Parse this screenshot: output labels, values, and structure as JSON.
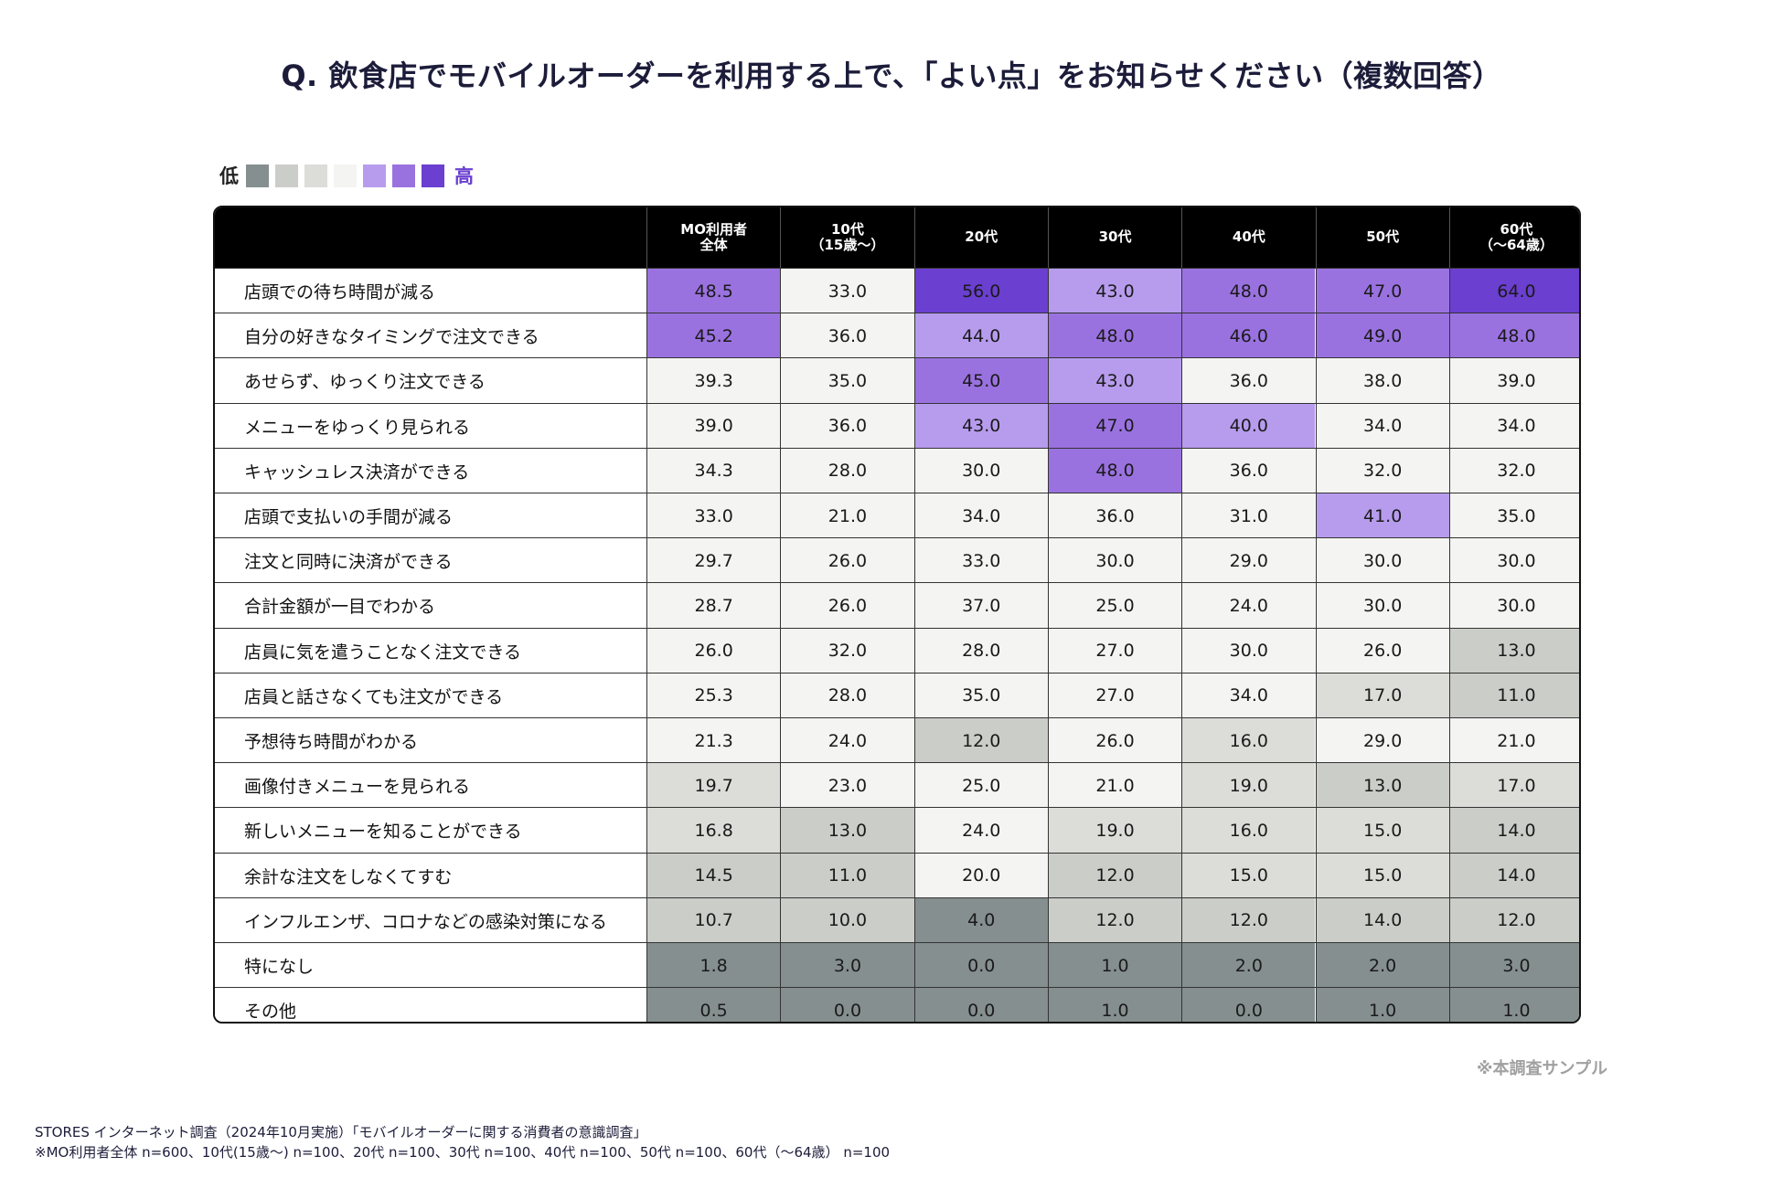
{
  "title": "Q. 飲食店でモバイルオーダーを利用する上で､「よい点」をお知らせください（複数回答）",
  "legend": {
    "low_label": "低",
    "high_label": "高",
    "swatches": [
      "#858f8f",
      "#cbcdc9",
      "#dcddd9",
      "#f4f4f2",
      "#b79cee",
      "#9a72e0",
      "#6b3fd0"
    ]
  },
  "colors": {
    "header_bg": "#000000",
    "header_text": "#ffffff",
    "level_1": "#858f8f",
    "level_2": "#cbcdc9",
    "level_3": "#dcddd9",
    "level_4": "#f4f4f2",
    "level_5": "#b79cee",
    "level_6": "#9a72e0",
    "level_7": "#6b3fd0"
  },
  "chart_data": {
    "type": "table",
    "title": "Q. 飲食店でモバイルオーダーを利用する上で､「よい点」をお知らせください（複数回答）",
    "columns": [
      {
        "line1": "MO利用者",
        "line2": "全体"
      },
      {
        "line1": "10代",
        "line2": "（15歳～）"
      },
      {
        "line1": "20代",
        "line2": ""
      },
      {
        "line1": "30代",
        "line2": ""
      },
      {
        "line1": "40代",
        "line2": ""
      },
      {
        "line1": "50代",
        "line2": ""
      },
      {
        "line1": "60代",
        "line2": "（～64歳）"
      }
    ],
    "rows": [
      {
        "label": "店頭での待ち時間が減る",
        "values": [
          "48.5",
          "33.0",
          "56.0",
          "43.0",
          "48.0",
          "47.0",
          "64.0"
        ],
        "levels": [
          6,
          4,
          7,
          5,
          6,
          6,
          7
        ]
      },
      {
        "label": "自分の好きなタイミングで注文できる",
        "values": [
          "45.2",
          "36.0",
          "44.0",
          "48.0",
          "46.0",
          "49.0",
          "48.0"
        ],
        "levels": [
          6,
          4,
          5,
          6,
          6,
          6,
          6
        ]
      },
      {
        "label": "あせらず、ゆっくり注文できる",
        "values": [
          "39.3",
          "35.0",
          "45.0",
          "43.0",
          "36.0",
          "38.0",
          "39.0"
        ],
        "levels": [
          4,
          4,
          6,
          5,
          4,
          4,
          4
        ]
      },
      {
        "label": "メニューをゆっくり見られる",
        "values": [
          "39.0",
          "36.0",
          "43.0",
          "47.0",
          "40.0",
          "34.0",
          "34.0"
        ],
        "levels": [
          4,
          4,
          5,
          6,
          5,
          4,
          4
        ]
      },
      {
        "label": "キャッシュレス決済ができる",
        "values": [
          "34.3",
          "28.0",
          "30.0",
          "48.0",
          "36.0",
          "32.0",
          "32.0"
        ],
        "levels": [
          4,
          4,
          4,
          6,
          4,
          4,
          4
        ]
      },
      {
        "label": "店頭で支払いの手間が減る",
        "values": [
          "33.0",
          "21.0",
          "34.0",
          "36.0",
          "31.0",
          "41.0",
          "35.0"
        ],
        "levels": [
          4,
          4,
          4,
          4,
          4,
          5,
          4
        ]
      },
      {
        "label": "注文と同時に決済ができる",
        "values": [
          "29.7",
          "26.0",
          "33.0",
          "30.0",
          "29.0",
          "30.0",
          "30.0"
        ],
        "levels": [
          4,
          4,
          4,
          4,
          4,
          4,
          4
        ]
      },
      {
        "label": "合計金額が一目でわかる",
        "values": [
          "28.7",
          "26.0",
          "37.0",
          "25.0",
          "24.0",
          "30.0",
          "30.0"
        ],
        "levels": [
          4,
          4,
          4,
          4,
          4,
          4,
          4
        ]
      },
      {
        "label": "店員に気を遣うことなく注文できる",
        "values": [
          "26.0",
          "32.0",
          "28.0",
          "27.0",
          "30.0",
          "26.0",
          "13.0"
        ],
        "levels": [
          4,
          4,
          4,
          4,
          4,
          4,
          2
        ]
      },
      {
        "label": "店員と話さなくても注文ができる",
        "values": [
          "25.3",
          "28.0",
          "35.0",
          "27.0",
          "34.0",
          "17.0",
          "11.0"
        ],
        "levels": [
          4,
          4,
          4,
          4,
          4,
          3,
          2
        ]
      },
      {
        "label": "予想待ち時間がわかる",
        "values": [
          "21.3",
          "24.0",
          "12.0",
          "26.0",
          "16.0",
          "29.0",
          "21.0"
        ],
        "levels": [
          4,
          4,
          2,
          4,
          3,
          4,
          4
        ]
      },
      {
        "label": "画像付きメニューを見られる",
        "values": [
          "19.7",
          "23.0",
          "25.0",
          "21.0",
          "19.0",
          "13.0",
          "17.0"
        ],
        "levels": [
          3,
          4,
          4,
          4,
          3,
          2,
          3
        ]
      },
      {
        "label": "新しいメニューを知ることができる",
        "values": [
          "16.8",
          "13.0",
          "24.0",
          "19.0",
          "16.0",
          "15.0",
          "14.0"
        ],
        "levels": [
          3,
          2,
          4,
          3,
          3,
          3,
          2
        ]
      },
      {
        "label": "余計な注文をしなくてすむ",
        "values": [
          "14.5",
          "11.0",
          "20.0",
          "12.0",
          "15.0",
          "15.0",
          "14.0"
        ],
        "levels": [
          2,
          2,
          4,
          2,
          3,
          3,
          2
        ]
      },
      {
        "label": "インフルエンザ、コロナなどの感染対策になる",
        "values": [
          "10.7",
          "10.0",
          "4.0",
          "12.0",
          "12.0",
          "14.0",
          "12.0"
        ],
        "levels": [
          2,
          2,
          1,
          2,
          2,
          2,
          2
        ]
      },
      {
        "label": "特になし",
        "values": [
          "1.8",
          "3.0",
          "0.0",
          "1.0",
          "2.0",
          "2.0",
          "3.0"
        ],
        "levels": [
          1,
          1,
          1,
          1,
          1,
          1,
          1
        ]
      },
      {
        "label": "その他",
        "values": [
          "0.5",
          "0.0",
          "0.0",
          "1.0",
          "0.0",
          "1.0",
          "1.0"
        ],
        "levels": [
          1,
          1,
          1,
          1,
          1,
          1,
          1
        ]
      }
    ]
  },
  "note_sample": "※本調査サンプル",
  "source": {
    "line1": "STORES インターネット調査（2024年10月実施）「モバイルオーダーに関する消費者の意識調査」",
    "line2": "※MO利用者全体 n=600、10代(15歳～) n=100、20代 n=100、30代 n=100、40代 n=100、50代 n=100、60代（～64歳） n=100"
  }
}
